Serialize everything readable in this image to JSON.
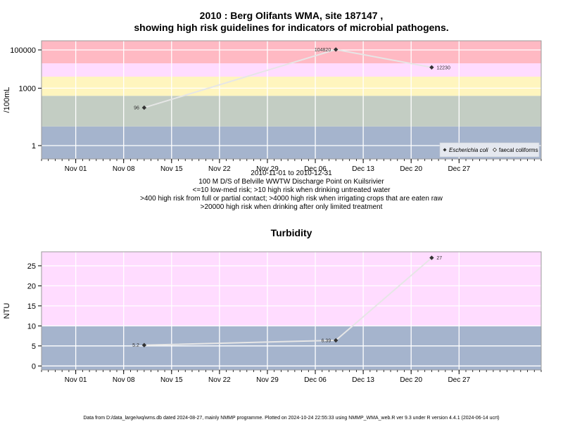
{
  "colors": {
    "red": "#ffb9c3",
    "pink": "#ffdcff",
    "yellow": "#fff5be",
    "green": "#c3cdc3",
    "blue": "#a5b4cd",
    "line": "#e6e6e6",
    "marker": "#333333"
  },
  "chart_data": [
    {
      "type": "line",
      "title_line1": "2010 : Berg Olifants WMA, site 187147 ,",
      "title_line2": "showing high risk guidelines for indicators of microbial pathogens.",
      "ylabel": "/100mL",
      "y_scale": "log10",
      "ylim": [
        0.2,
        300000
      ],
      "y_ticks": [
        1,
        1000,
        100000
      ],
      "y_tick_labels": [
        "1",
        "1000",
        "100000"
      ],
      "xlim": [
        "2010-10-27",
        "2011-01-08"
      ],
      "x_ticks": [
        "2010-11-01",
        "2010-11-08",
        "2010-11-15",
        "2010-11-22",
        "2010-11-29",
        "2010-12-06",
        "2010-12-13",
        "2010-12-20",
        "2010-12-27"
      ],
      "x_tick_labels": [
        "Nov 01",
        "Nov 08",
        "Nov 15",
        "Nov 22",
        "Nov 29",
        "Dec 06",
        "Dec 13",
        "Dec 20",
        "Dec 27"
      ],
      "bands": [
        {
          "from": 0.2,
          "to": 10,
          "color": "blue"
        },
        {
          "from": 10,
          "to": 400,
          "color": "green"
        },
        {
          "from": 400,
          "to": 4000,
          "color": "yellow"
        },
        {
          "from": 4000,
          "to": 20000,
          "color": "pink"
        },
        {
          "from": 20000,
          "to": 300000,
          "color": "red"
        }
      ],
      "grid": true,
      "series": [
        {
          "name": "Escherichia coli",
          "marker": "filled-diamond",
          "points": [
            {
              "x": "2010-11-11",
              "y": 96,
              "label": "96"
            },
            {
              "x": "2010-12-09",
              "y": 104820,
              "label": "104820"
            },
            {
              "x": "2010-12-23",
              "y": 12230,
              "label": "12230"
            }
          ]
        }
      ],
      "legend": {
        "placement": "bottom-right",
        "entries": [
          {
            "label": "Escherichia coli",
            "marker": "filled-diamond"
          },
          {
            "label": "faecal coliforms",
            "marker": "open-diamond"
          }
        ]
      },
      "caption_lines": [
        "2010-11-01 to 2010-12-31",
        "100 M D/S of Belville WWTW Discharge Point on Kuilsrivier",
        "<=10 low-med risk; >10 high risk when drinking untreated water",
        ">400 high risk from full or partial contact; >4000 high risk when irrigating crops that are eaten raw",
        ">20000 high risk when drinking after only limited treatment"
      ]
    },
    {
      "type": "line",
      "title": "Turbidity",
      "ylabel": "NTU",
      "ylim": [
        -1,
        28.5
      ],
      "y_ticks": [
        0,
        5,
        10,
        15,
        20,
        25
      ],
      "y_tick_labels": [
        "0",
        "5",
        "10",
        "15",
        "20",
        "25"
      ],
      "xlim": [
        "2010-10-27",
        "2011-01-08"
      ],
      "x_ticks": [
        "2010-11-01",
        "2010-11-08",
        "2010-11-15",
        "2010-11-22",
        "2010-11-29",
        "2010-12-06",
        "2010-12-13",
        "2010-12-20",
        "2010-12-27"
      ],
      "x_tick_labels": [
        "Nov 01",
        "Nov 08",
        "Nov 15",
        "Nov 22",
        "Nov 29",
        "Dec 06",
        "Dec 13",
        "Dec 20",
        "Dec 27"
      ],
      "bands": [
        {
          "from": -1,
          "to": 10,
          "color": "blue"
        },
        {
          "from": 10,
          "to": 28.5,
          "color": "pink"
        }
      ],
      "grid": true,
      "series": [
        {
          "marker": "filled-diamond",
          "points": [
            {
              "x": "2010-11-11",
              "y": 5.2,
              "label": "5.2"
            },
            {
              "x": "2010-12-09",
              "y": 6.39,
              "label": "6.39"
            },
            {
              "x": "2010-12-23",
              "y": 27,
              "label": "27"
            }
          ]
        }
      ]
    }
  ],
  "footer": "Data from D:/data_large/wq/wms.db dated 2024-08-27, mainly NMMP programme. Plotted on 2024-10-24 22:55:33 using NMMP_WMA_web.R ver 9.3 under R version 4.4.1 (2024-06-14 ucrt)"
}
